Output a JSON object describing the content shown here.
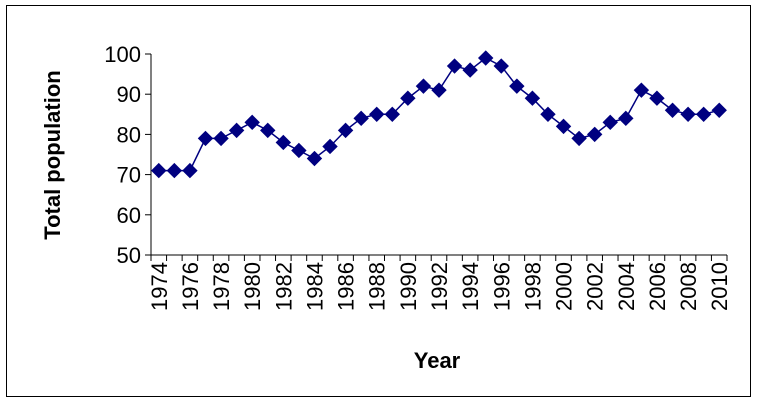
{
  "chart_data": {
    "type": "line",
    "title": "",
    "xlabel": "Year",
    "ylabel": "Total population",
    "ylim": [
      50,
      100
    ],
    "y_ticks": [
      50,
      60,
      70,
      80,
      90,
      100
    ],
    "x_tick_labels": [
      "1974",
      "1976",
      "1978",
      "1980",
      "1982",
      "1984",
      "1986",
      "1988",
      "1990",
      "1992",
      "1994",
      "1996",
      "1998",
      "2000",
      "2002",
      "2004",
      "2006",
      "2008",
      "2010"
    ],
    "grid": false,
    "legend": "none",
    "series": [
      {
        "color": "#000080",
        "marker": "diamond",
        "x": [
          1974,
          1975,
          1976,
          1977,
          1978,
          1979,
          1980,
          1981,
          1982,
          1983,
          1984,
          1985,
          1986,
          1987,
          1988,
          1989,
          1990,
          1991,
          1992,
          1993,
          1994,
          1995,
          1996,
          1997,
          1998,
          1999,
          2000,
          2001,
          2002,
          2003,
          2004,
          2005,
          2006,
          2007,
          2008,
          2009,
          2010
        ],
        "values": [
          71,
          71,
          71,
          79,
          79,
          81,
          83,
          81,
          78,
          76,
          74,
          77,
          81,
          84,
          85,
          85,
          89,
          92,
          91,
          97,
          96,
          99,
          97,
          92,
          89,
          85,
          82,
          79,
          80,
          83,
          84,
          91,
          89,
          86,
          85,
          85,
          86
        ]
      }
    ]
  }
}
